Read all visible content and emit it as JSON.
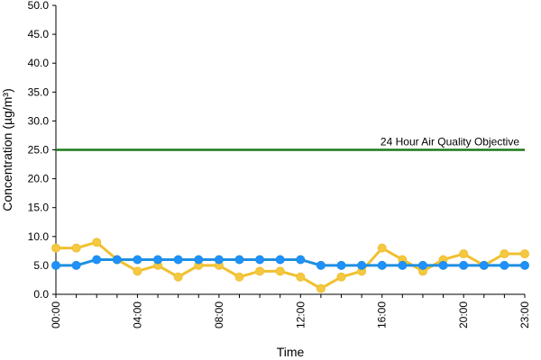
{
  "chart_data": {
    "type": "line",
    "xlabel": "Time",
    "ylabel": "Concentration (µg/m³)",
    "ylim": [
      0,
      50
    ],
    "xlim": [
      0,
      23
    ],
    "y_ticks": [
      "0.0",
      "5.0",
      "10.0",
      "15.0",
      "20.0",
      "25.0",
      "30.0",
      "35.0",
      "40.0",
      "45.0",
      "50.0"
    ],
    "x_ticks": [
      {
        "hour": 0,
        "label": "00:00"
      },
      {
        "hour": 4,
        "label": "04:00"
      },
      {
        "hour": 8,
        "label": "08:00"
      },
      {
        "hour": 12,
        "label": "12:00"
      },
      {
        "hour": 16,
        "label": "16:00"
      },
      {
        "hour": 20,
        "label": "20:00"
      },
      {
        "hour": 23,
        "label": "23:00"
      }
    ],
    "grid": false,
    "x": [
      0,
      1,
      2,
      3,
      4,
      5,
      6,
      7,
      8,
      9,
      10,
      11,
      12,
      13,
      14,
      15,
      16,
      17,
      18,
      19,
      20,
      21,
      22,
      23
    ],
    "series": [
      {
        "color": "#f0c030",
        "marker_color": "#f5c842",
        "values": [
          8,
          8,
          9,
          6,
          4,
          5,
          3,
          5,
          5,
          3,
          4,
          4,
          3,
          1,
          3,
          4,
          8,
          6,
          4,
          6,
          7,
          5,
          7,
          7
        ]
      },
      {
        "color": "#1f8fe0",
        "marker_color": "#1e90ff",
        "values": [
          5,
          5,
          6,
          6,
          6,
          6,
          6,
          6,
          6,
          6,
          6,
          6,
          6,
          5,
          5,
          5,
          5,
          5,
          5,
          5,
          5,
          5,
          5,
          5
        ]
      }
    ],
    "reference_line": {
      "value": 25,
      "label": "24 Hour Air Quality Objective",
      "color": "#1a7a1a"
    }
  }
}
